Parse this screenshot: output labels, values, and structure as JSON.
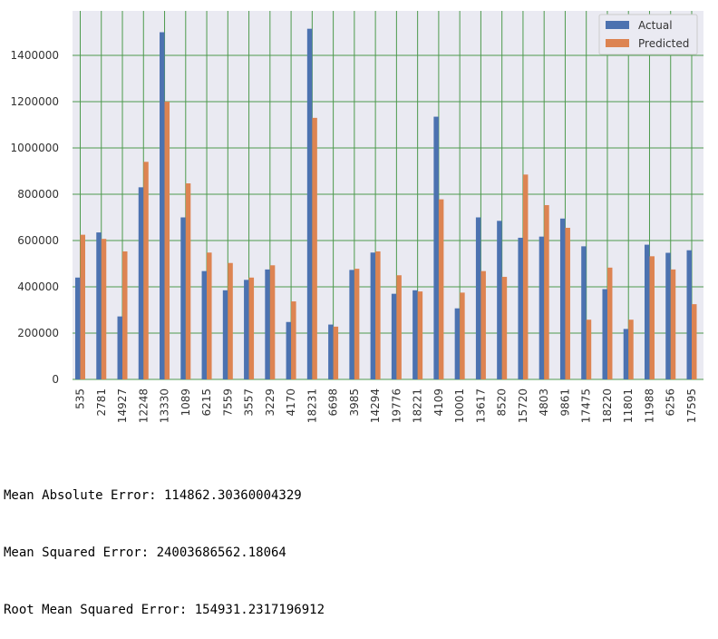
{
  "chart_data": {
    "type": "bar",
    "categories": [
      "535",
      "2781",
      "14927",
      "12248",
      "13330",
      "1089",
      "6215",
      "7559",
      "3557",
      "3229",
      "4170",
      "18231",
      "6698",
      "3985",
      "14294",
      "19776",
      "18221",
      "4109",
      "10001",
      "13617",
      "8520",
      "15720",
      "4803",
      "9861",
      "17475",
      "18220",
      "11801",
      "11988",
      "6256",
      "17595"
    ],
    "series": [
      {
        "name": "Actual",
        "color": "#4c72b0",
        "values": [
          440000,
          635000,
          272000,
          830000,
          1500000,
          700000,
          468000,
          385000,
          430000,
          475000,
          248000,
          1515000,
          237000,
          473000,
          548000,
          370000,
          385000,
          1135000,
          307000,
          700000,
          685000,
          612000,
          617000,
          695000,
          575000,
          390000,
          218000,
          582000,
          547000,
          558000
        ]
      },
      {
        "name": "Predicted",
        "color": "#dd8452",
        "values": [
          625000,
          607000,
          553000,
          940000,
          1200000,
          847000,
          548000,
          503000,
          440000,
          493000,
          337000,
          1130000,
          228000,
          478000,
          553000,
          450000,
          380000,
          778000,
          375000,
          468000,
          443000,
          885000,
          753000,
          655000,
          258000,
          483000,
          258000,
          532000,
          475000,
          325000
        ]
      }
    ],
    "yticks": [
      0,
      200000,
      400000,
      600000,
      800000,
      1000000,
      1200000,
      1400000
    ],
    "ylim": [
      0,
      1600000
    ],
    "grid": true,
    "legend_position": "top-right",
    "title": "",
    "xlabel": "",
    "ylabel": ""
  },
  "metrics": {
    "mae": "Mean Absolute Error: 114862.30360004329",
    "mse": "Mean Squared Error: 24003686562.18064",
    "rmse": "Root Mean Squared Error: 154931.2317196912"
  },
  "colors": {
    "plot_bg": "#eaeaf2",
    "grid": "#4d9a4d"
  }
}
